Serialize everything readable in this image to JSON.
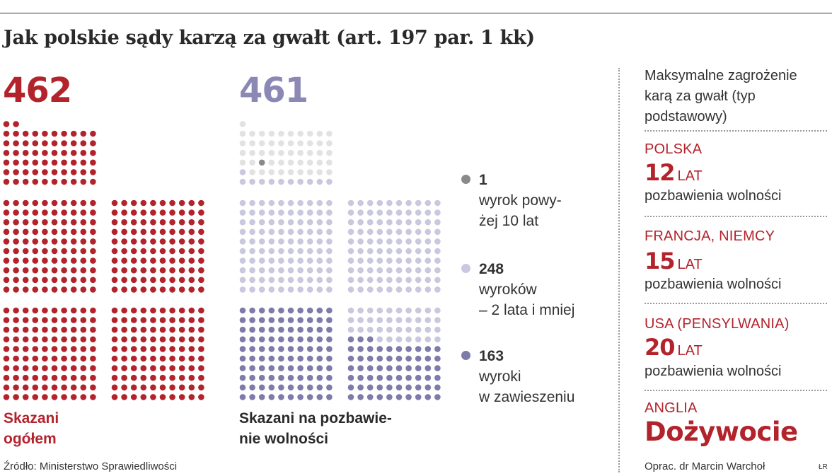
{
  "title": "Jak polskie sądy karzą za gwałt (art. 197 par. 1 kk)",
  "colors": {
    "total": "#b3232c",
    "over10": "#8a8a8a",
    "under2": "#c9c8de",
    "empty": "#e2e2e2",
    "suspended": "#7e7bab",
    "sent_number": "#8b88b5"
  },
  "chart_data": [
    {
      "type": "waffle",
      "value": 462,
      "value_label": "462",
      "caption": "Skazani\nogółem",
      "series": [
        {
          "name": "Skazani ogółem",
          "value": 462
        }
      ]
    },
    {
      "type": "waffle",
      "value": 461,
      "value_label": "461",
      "caption": "Skazani na pozbawie-\nnie wolności",
      "series": [
        {
          "name": "wyrok powyżej 10 lat",
          "value": 1
        },
        {
          "name": "wyroków – 2 lata i mniej",
          "value": 248
        },
        {
          "name": "wyroki w zawieszeniu",
          "value": 163
        }
      ]
    }
  ],
  "legend": [
    {
      "count": "1",
      "desc": "wyrok powy-\nżej 10 lat",
      "color": "#8a8a8a"
    },
    {
      "count": "248",
      "desc": "wyroków\n– 2 lata i mniej",
      "color": "#c9c8de"
    },
    {
      "count": "163",
      "desc": "wyroki\nw zawieszeniu",
      "color": "#7e7bab"
    }
  ],
  "side": {
    "heading": "Maksymalne zagrożenie\nkarą za gwałt (typ\npodstawowy)",
    "entries": [
      {
        "country": "POLSKA",
        "number": "12",
        "unit": "LAT",
        "text": "pozbawienia wolności"
      },
      {
        "country": "FRANCJA, NIEMCY",
        "number": "15",
        "unit": "LAT",
        "text": "pozbawienia wolności"
      },
      {
        "country": "USA (PENSYLWANIA)",
        "number": "20",
        "unit": "LAT",
        "text": "pozbawienia wolności"
      }
    ],
    "last_country": "ANGLIA",
    "last_value": "Dożywocie"
  },
  "source": "Źródło: Ministerstwo Sprawiedliwości",
  "author": "Oprac. dr Marcin Warchoł",
  "signature": "ŁR"
}
